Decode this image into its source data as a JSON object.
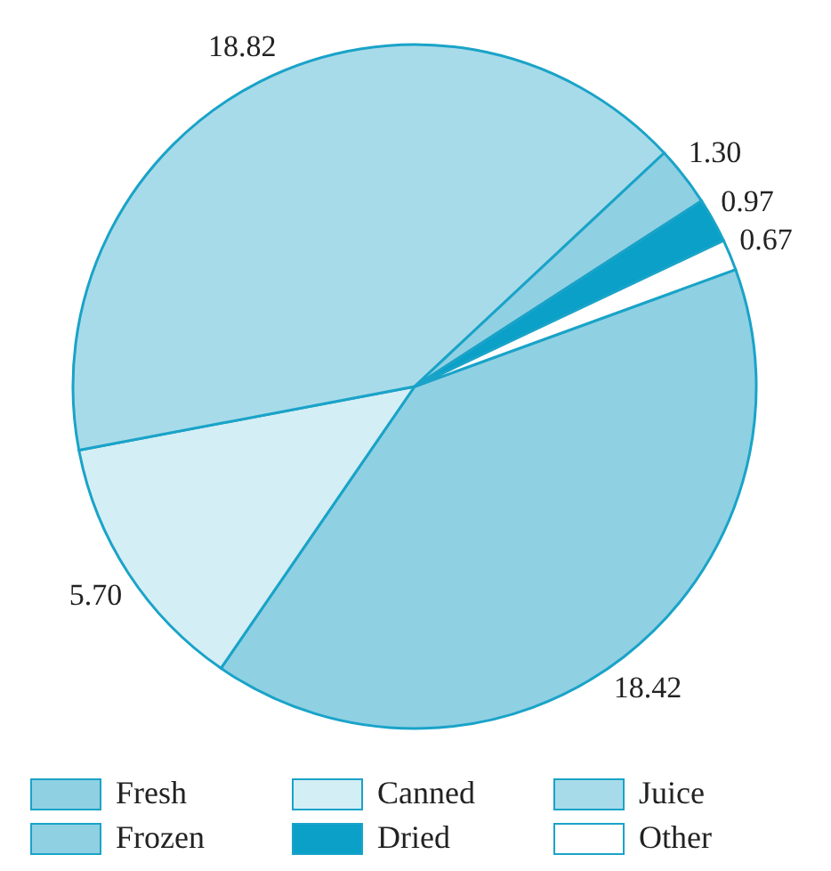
{
  "chart_data": {
    "type": "pie",
    "categories": [
      "Fresh",
      "Canned",
      "Juice",
      "Frozen",
      "Dried",
      "Other"
    ],
    "values": [
      18.42,
      5.7,
      18.82,
      1.3,
      0.97,
      0.67
    ],
    "colors": [
      "#8fd0e3",
      "#d4eef5",
      "#a8dbe9",
      "#8fd0e3",
      "#0aa0c8",
      "#ffffff"
    ],
    "value_labels": [
      "18.42",
      "5.70",
      "18.82",
      "1.30",
      "0.97",
      "0.67"
    ],
    "legend": "bottom"
  }
}
